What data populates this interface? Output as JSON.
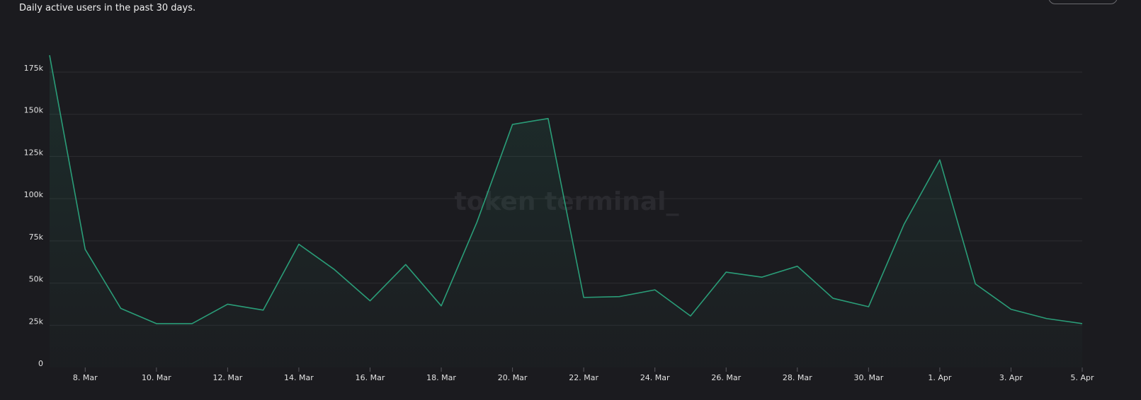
{
  "header": {
    "subtitle": "Daily active users in the past 30 days."
  },
  "watermark": "token terminal_",
  "colors": {
    "background": "#1b1b1f",
    "line": "#2a9d78",
    "grid": "#2c2c31",
    "text": "#e2e2e2"
  },
  "chart_data": {
    "type": "area",
    "title": "",
    "subtitle": "Daily active users in the past 30 days.",
    "xlabel": "",
    "ylabel": "",
    "grid": true,
    "ylim": [
      0,
      185000
    ],
    "y_ticks": [
      0,
      25000,
      50000,
      75000,
      100000,
      125000,
      150000,
      175000
    ],
    "y_tick_labels": [
      "0",
      "25k",
      "50k",
      "75k",
      "100k",
      "125k",
      "150k",
      "175k"
    ],
    "x": [
      "7 Mar",
      "8 Mar",
      "9 Mar",
      "10 Mar",
      "11 Mar",
      "12 Mar",
      "13 Mar",
      "14 Mar",
      "15 Mar",
      "16 Mar",
      "17 Mar",
      "18 Mar",
      "19 Mar",
      "20 Mar",
      "21 Mar",
      "22 Mar",
      "23 Mar",
      "24 Mar",
      "25 Mar",
      "26 Mar",
      "27 Mar",
      "28 Mar",
      "29 Mar",
      "30 Mar",
      "31 Mar",
      "1 Apr",
      "2 Apr",
      "3 Apr",
      "4 Apr",
      "5 Apr"
    ],
    "x_tick_labels": [
      {
        "index": 1,
        "label": "8. Mar"
      },
      {
        "index": 3,
        "label": "10. Mar"
      },
      {
        "index": 5,
        "label": "12. Mar"
      },
      {
        "index": 7,
        "label": "14. Mar"
      },
      {
        "index": 9,
        "label": "16. Mar"
      },
      {
        "index": 11,
        "label": "18. Mar"
      },
      {
        "index": 13,
        "label": "20. Mar"
      },
      {
        "index": 15,
        "label": "22. Mar"
      },
      {
        "index": 17,
        "label": "24. Mar"
      },
      {
        "index": 19,
        "label": "26. Mar"
      },
      {
        "index": 21,
        "label": "28. Mar"
      },
      {
        "index": 23,
        "label": "30. Mar"
      },
      {
        "index": 25,
        "label": "1. Apr"
      },
      {
        "index": 27,
        "label": "3. Apr"
      },
      {
        "index": 29,
        "label": "5. Apr"
      }
    ],
    "series": [
      {
        "values": [
          185000,
          70000,
          35000,
          26000,
          26000,
          37500,
          34000,
          73000,
          58000,
          39500,
          61000,
          36500,
          86000,
          144000,
          147500,
          41500,
          42000,
          46000,
          30500,
          56500,
          53500,
          60000,
          41000,
          36000,
          85000,
          123000,
          49500,
          34500,
          29000,
          26000
        ]
      }
    ]
  }
}
